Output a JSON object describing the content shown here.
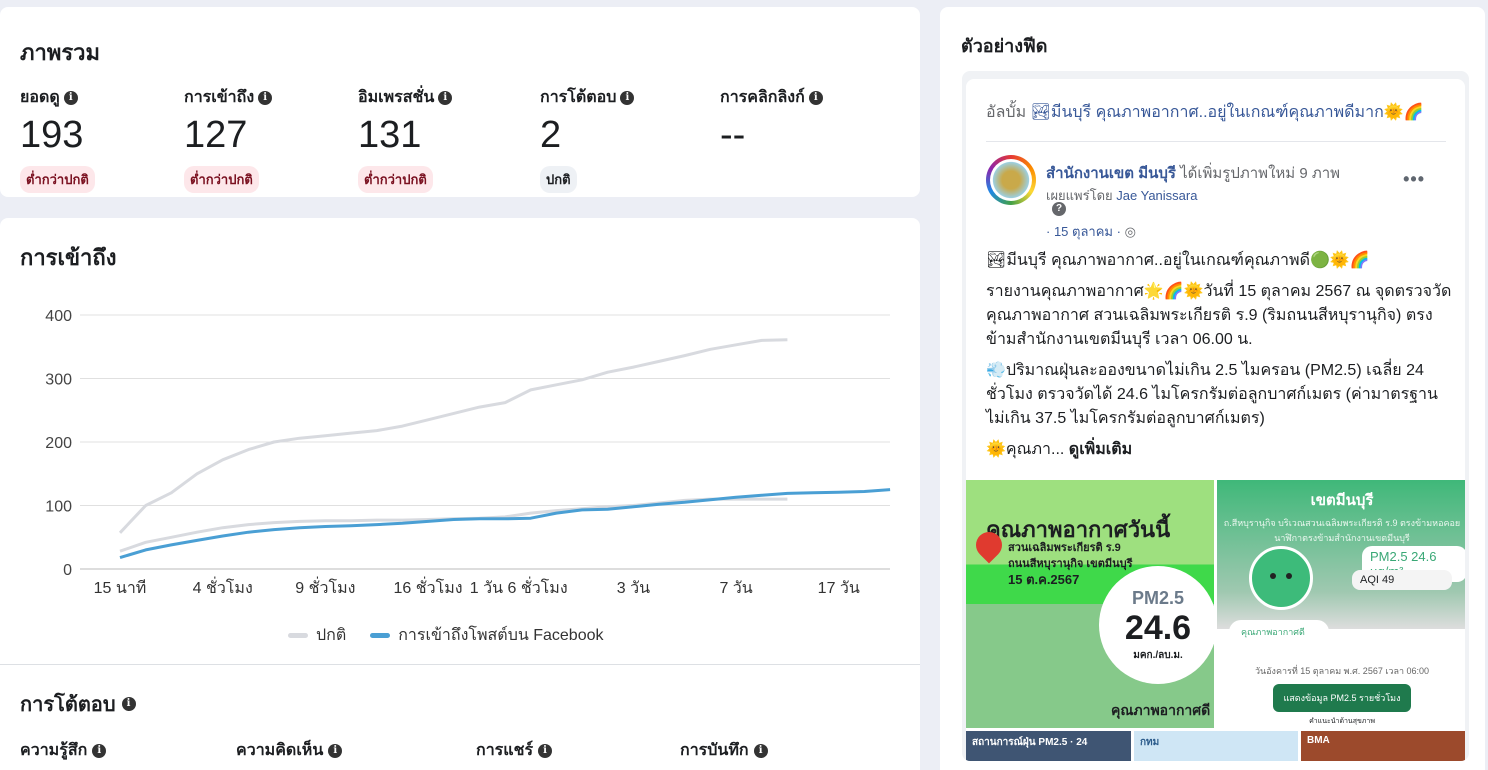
{
  "overview": {
    "title": "ภาพรวม",
    "metrics": [
      {
        "label": "ยอดดู",
        "value": "193",
        "status": "ต่ำกว่าปกติ",
        "status_type": "low"
      },
      {
        "label": "การเข้าถึง",
        "value": "127",
        "status": "ต่ำกว่าปกติ",
        "status_type": "low"
      },
      {
        "label": "อิมเพรสชั่น",
        "value": "131",
        "status": "ต่ำกว่าปกติ",
        "status_type": "low"
      },
      {
        "label": "การโต้ตอบ",
        "value": "2",
        "status": "ปกติ",
        "status_type": "normal"
      },
      {
        "label": "การคลิกลิงก์",
        "value": "--",
        "status": null
      }
    ],
    "info_icon": "info-icon"
  },
  "reach": {
    "title": "การเข้าถึง"
  },
  "chart_data": {
    "type": "line",
    "grid": true,
    "legend_placement": "bottom",
    "ylim": [
      0,
      400
    ],
    "yticks": [
      0,
      100,
      200,
      300,
      400
    ],
    "xtick_labels": [
      "15 นาที",
      "4 ชั่วโมง",
      "9 ชั่วโมง",
      "16 ชั่วโมง",
      "1 วัน 6 ชั่วโมง",
      "3 วัน",
      "7 วัน",
      "17 วัน"
    ],
    "legend": [
      "ปกติ",
      "การเข้าถึงโพสต์บน Facebook"
    ],
    "colors": {
      "normal": "#d8dadf",
      "actual": "#4a9fd4"
    },
    "series": [
      {
        "name": "ปกติ",
        "role": "upper",
        "values": [
          57,
          100,
          120,
          150,
          172,
          188,
          200,
          206,
          210,
          214,
          218,
          225,
          235,
          245,
          255,
          262,
          282,
          290,
          298,
          310,
          318,
          327,
          336,
          346,
          353,
          360,
          361
        ]
      },
      {
        "name": "ปกติ",
        "role": "lower",
        "values": [
          28,
          42,
          50,
          58,
          65,
          70,
          73,
          75,
          76,
          76,
          77,
          77,
          78,
          79,
          80,
          82,
          88,
          92,
          95,
          98,
          100,
          104,
          108,
          110,
          110,
          110,
          110
        ]
      },
      {
        "name": "การเข้าถึงโพสต์บน Facebook",
        "values": [
          18,
          30,
          38,
          45,
          52,
          58,
          62,
          65,
          67,
          68,
          70,
          72,
          75,
          78,
          79,
          79,
          80,
          88,
          93,
          94,
          98,
          102,
          105,
          109,
          113,
          116,
          119,
          120,
          121,
          122,
          125
        ]
      }
    ]
  },
  "engagement": {
    "title": "การโต้ตอบ",
    "metrics": [
      "ความรู้สึก",
      "ความคิดเห็น",
      "การแชร์",
      "การบันทึก"
    ]
  },
  "feed": {
    "title": "ตัวอย่างฟีด",
    "album_prefix": "อัลบั้ม",
    "album_name": "🏞มีนบุรี คุณภาพอากาศ..อยู่ในเกณฑ์คุณภาพดีมาก🌞🌈",
    "page_name": "สำนักงานเขต มีนบุรี",
    "action": "ได้เพิ่มรูปภาพใหม่ 9 ภาพ",
    "published_by_prefix": "เผยแพร่โดย",
    "publisher": "Jae Yanissara",
    "date": "· 15 ตุลาคม ·",
    "globe_icon": "🌐",
    "paragraphs": [
      "🏞มีนบุรี คุณภาพอากาศ..อยู่ในเกณฑ์คุณภาพดี🟢🌞🌈",
      "รายงานคุณภาพอากาศ🌟🌈🌞วันที่ 15 ตุลาคม 2567 ณ จุดตรวจวัดคุณภาพอากาศ สวนเฉลิมพระเกียรติ ร.9 (ริมถนนสีหบุรานุกิจ) ตรงข้ามสำนักงานเขตมีนบุรี เวลา 06.00 น.",
      "💨ปริมาณฝุ่นละอองขนาดไม่เกิน 2.5 ไมครอน (PM2.5) เฉลี่ย 24 ชั่วโมง ตรวจวัดได้ 24.6 ไมโครกรัมต่อลูกบาศก์เมตร (ค่ามาตรฐานไม่เกิน 37.5 ไมโครกรัมต่อลูกบาศก์เมตร)"
    ],
    "truncated": "🌞คุณภา...",
    "see_more": "ดูเพิ่มเติม",
    "image1": {
      "title": "คุณภาพอากาศวันนี้",
      "location1": "สวนเฉลิมพระเกียรติ ร.9",
      "location2": "ถนนสีหบุรานุกิจ เขตมีนบุรี",
      "date": "15 ต.ค.2567",
      "pm_label": "PM2.5",
      "pm_value": "24.6",
      "unit": "มคก./ลบ.ม.",
      "quality": "คุณภาพอากาศดี"
    },
    "image2": {
      "title": "เขตมีนบุรี",
      "subtitle": "ถ.สีหบุรานุกิจ บริเวณสวนเฉลิมพระเกียรติ ร.9 ตรงข้ามหอคอยนาฬิกาตรงข้ามสำนักงานเขตมีนบุรี",
      "pm": "PM2.5 24.6 µg/m³",
      "aqi": "AQI   49",
      "quality": "คุณภาพอากาศดี",
      "datetime": "วันอังคารที่ 15 ตุลาคม พ.ศ. 2567 เวลา 06:00",
      "button": "แสดงข้อมูล PM2.5 รายชั่วโมง",
      "advice": "คำแนะนำด้านสุขภาพ"
    },
    "thumbs": [
      "สถานการณ์ฝุ่น PM2.5 · 24",
      "กทม",
      "BMA"
    ]
  }
}
